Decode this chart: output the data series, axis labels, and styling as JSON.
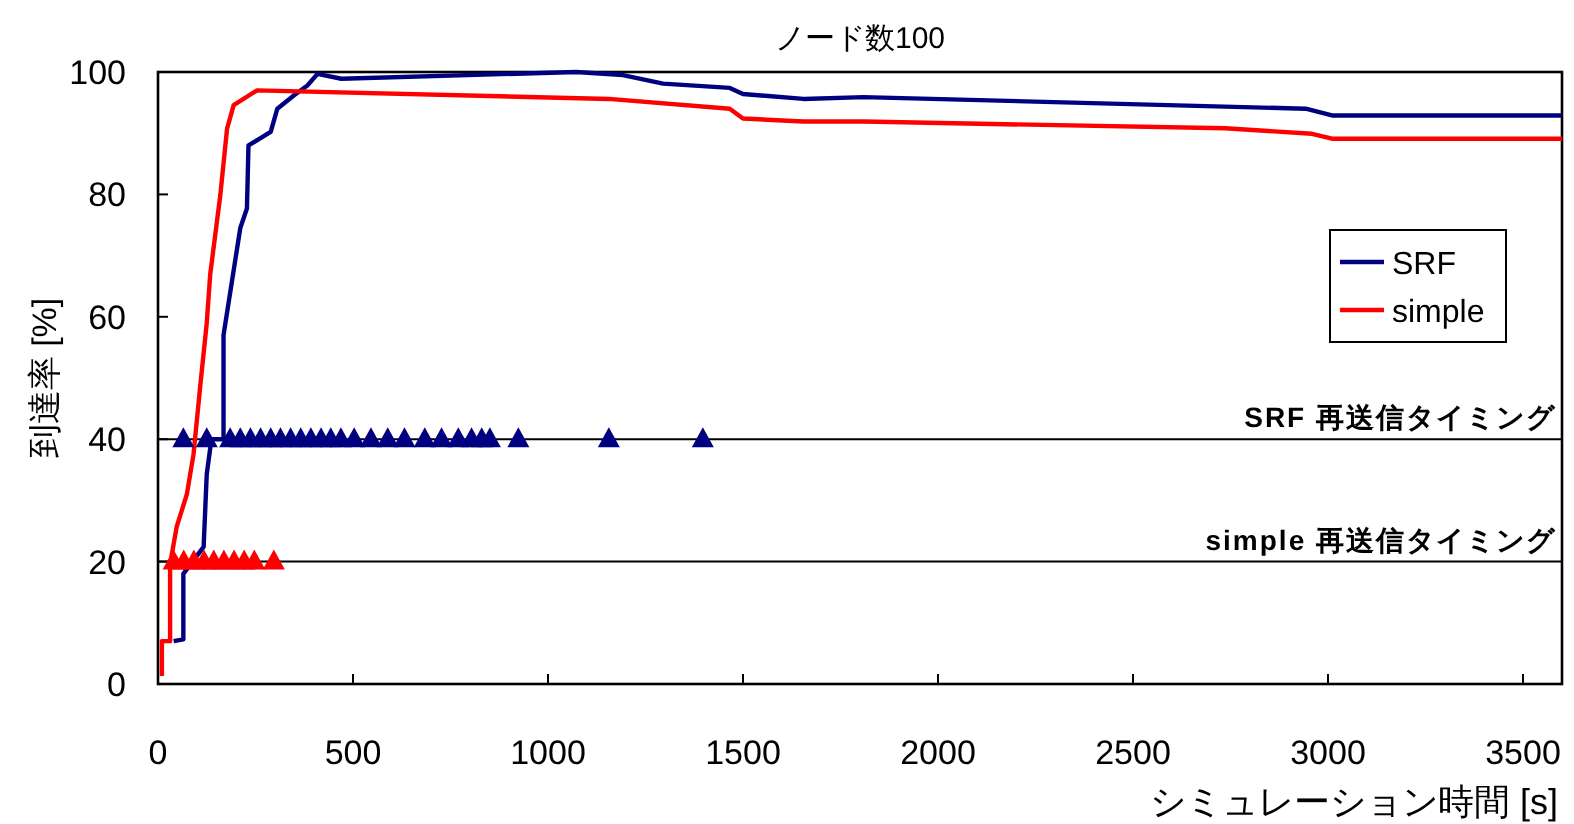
{
  "chart_data": {
    "type": "line",
    "title": "ノード数100",
    "xlabel": "シミュレーション時間 [s]",
    "ylabel": "到達率 [%]",
    "xlim": [
      0,
      3600
    ],
    "xticks": [
      0,
      500,
      1000,
      1500,
      2000,
      2500,
      3000,
      3500
    ],
    "ylim": [
      0,
      100
    ],
    "yticks": [
      0,
      20,
      40,
      60,
      80,
      100
    ],
    "legend": "right",
    "grid": false,
    "series": [
      {
        "name": "SRF",
        "color": "#000080",
        "line_style": "solid",
        "marker": "none",
        "x": [
          40,
          65,
          65,
          117,
          125,
          137,
          168,
          168,
          211,
          228,
          232,
          289,
          306,
          349,
          383,
          409,
          470,
          1072,
          1192,
          1295,
          1466,
          1500,
          1655,
          1809,
          2943,
          3010,
          3600
        ],
        "values": [
          7,
          7.3,
          18,
          22.4,
          34.3,
          40,
          40,
          57,
          74.5,
          77.7,
          88,
          90.2,
          94,
          96.2,
          97.8,
          99.7,
          98.9,
          100,
          99.5,
          98.1,
          97.4,
          96.4,
          95.6,
          95.9,
          94,
          92.9,
          92.9
        ]
      },
      {
        "name": "simple",
        "color": "#ff0000",
        "line_style": "solid",
        "marker": "none",
        "x": [
          10,
          10,
          31,
          31,
          48,
          74,
          91,
          108,
          125,
          134,
          160,
          177,
          194,
          254,
          1156,
          1466,
          1500,
          1655,
          1809,
          2737,
          2959,
          3010,
          3600
        ],
        "values": [
          1.3,
          7,
          7,
          19.6,
          25.7,
          31,
          37.5,
          48.5,
          59,
          67,
          80,
          90.7,
          94.6,
          97,
          95.6,
          94,
          92.4,
          91.9,
          91.9,
          90.8,
          89.9,
          89.1,
          89.1
        ]
      },
      {
        "type": "scatter",
        "color": "#000080",
        "marker": "triangle",
        "x": [
          65,
          125,
          185,
          211,
          237,
          263,
          289,
          314,
          340,
          366,
          392,
          418,
          443,
          469,
          503,
          546,
          589,
          632,
          684,
          727,
          770,
          804,
          830,
          851,
          924,
          1156,
          1397
        ],
        "values": [
          40,
          40,
          40,
          40,
          40,
          40,
          40,
          40,
          40,
          40,
          40,
          40,
          40,
          40,
          40,
          40,
          40,
          40,
          40,
          40,
          40,
          40,
          40,
          40,
          40,
          40,
          40
        ]
      },
      {
        "type": "scatter",
        "color": "#ff0000",
        "marker": "triangle",
        "x": [
          40,
          66,
          92,
          118,
          143,
          169,
          195,
          221,
          247,
          297
        ],
        "values": [
          20,
          20,
          20,
          20,
          20,
          20,
          20,
          20,
          20,
          20
        ]
      }
    ],
    "ref_lines": [
      {
        "axis": "y",
        "value": 40,
        "label": "SRF 再送信タイミング",
        "color": "#000000"
      },
      {
        "axis": "y",
        "value": 20,
        "label": "simple 再送信タイミング",
        "color": "#000000"
      }
    ]
  }
}
